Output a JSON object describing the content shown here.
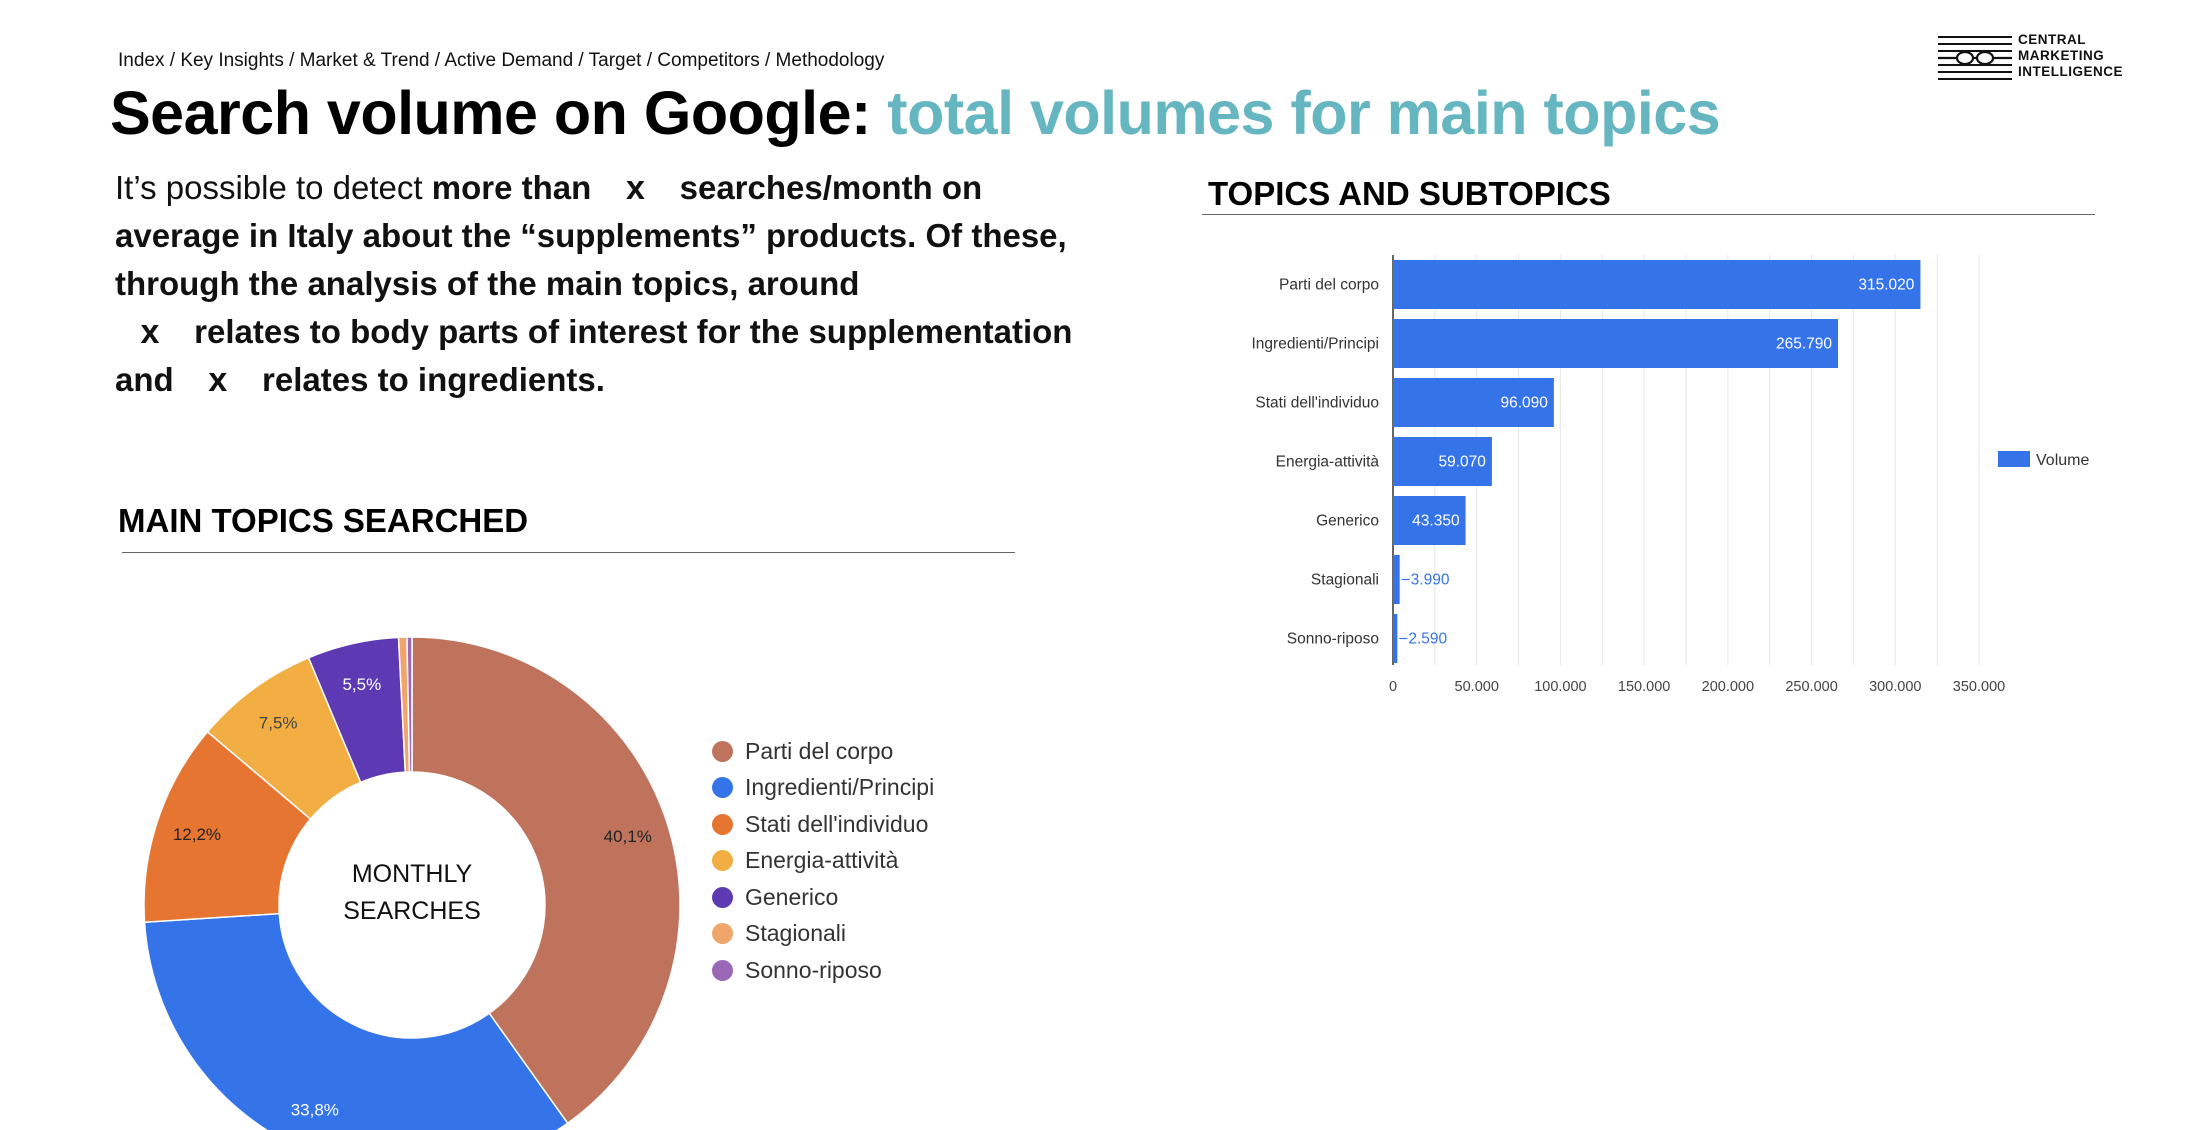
{
  "breadcrumb": "Index / Key Insights /  Market & Trend / Active Demand / Target / Competitors / Methodology",
  "logo": {
    "line1": "CENTRAL",
    "line2": "MARKETING",
    "line3": "INTELLIGENCE"
  },
  "title": {
    "main": "Search volume on Google: ",
    "accent": "total volumes for main topics"
  },
  "intro": {
    "p1a": "It’s possible to detect ",
    "p1b": "more than",
    "x1": "x",
    "p1c": "searches/month on average in Italy about the “supplements” products. Of these, through the analysis of the main topics, around",
    "x2": "x",
    "p1d": "relates to body parts of interest for the supplementation and",
    "x3": "x",
    "p1e": "relates to ingredients."
  },
  "sections": {
    "main_topics": "MAIN TOPICS SEARCHED",
    "topics_subtopics": "TOPICS AND SUBTOPICS"
  },
  "donut": {
    "center_line1": "MONTHLY",
    "center_line2": "SEARCHES"
  },
  "colors": {
    "accent": "#65b6c0",
    "bar": "#3473e8",
    "slices": [
      "#c0735c",
      "#3473e8",
      "#e67532",
      "#f2ae42",
      "#5d3ab4",
      "#f0a56b",
      "#9b68b8"
    ]
  },
  "chart_data": [
    {
      "type": "pie",
      "categories": [
        "Parti del corpo",
        "Ingredienti/Principi",
        "Stati dell'individuo",
        "Energia-attività",
        "Generico",
        "Stagionali",
        "Sonno-riposo"
      ],
      "values": [
        40.1,
        33.8,
        12.2,
        7.5,
        5.5,
        0.5,
        0.3
      ],
      "labels": [
        "40,1%",
        "33,8%",
        "12,2%",
        "7,5%",
        "5,5%",
        "",
        ""
      ],
      "legend": "right",
      "title": "",
      "center_text": "MONTHLY SEARCHES"
    },
    {
      "type": "bar",
      "orientation": "horizontal",
      "categories": [
        "Parti del corpo",
        "Ingredienti/Principi",
        "Stati dell'individuo",
        "Energia-attività",
        "Generico",
        "Stagionali",
        "Sonno-riposo"
      ],
      "series": [
        {
          "name": "Volume",
          "values": [
            315020,
            265790,
            96090,
            59070,
            43350,
            3990,
            2590
          ],
          "labels": [
            "315.020",
            "265.790",
            "96.090",
            "59.070",
            "43.350",
            "3.990",
            "2.590"
          ]
        }
      ],
      "xlim": [
        0,
        350000
      ],
      "xticks": [
        0,
        50000,
        100000,
        150000,
        200000,
        250000,
        300000,
        350000
      ],
      "xtick_labels": [
        "0",
        "50.000",
        "100.000",
        "150.000",
        "200.000",
        "250.000",
        "300.000",
        "350.000"
      ],
      "grid": true,
      "legend": "right",
      "title": "",
      "xlabel": "",
      "ylabel": ""
    }
  ]
}
